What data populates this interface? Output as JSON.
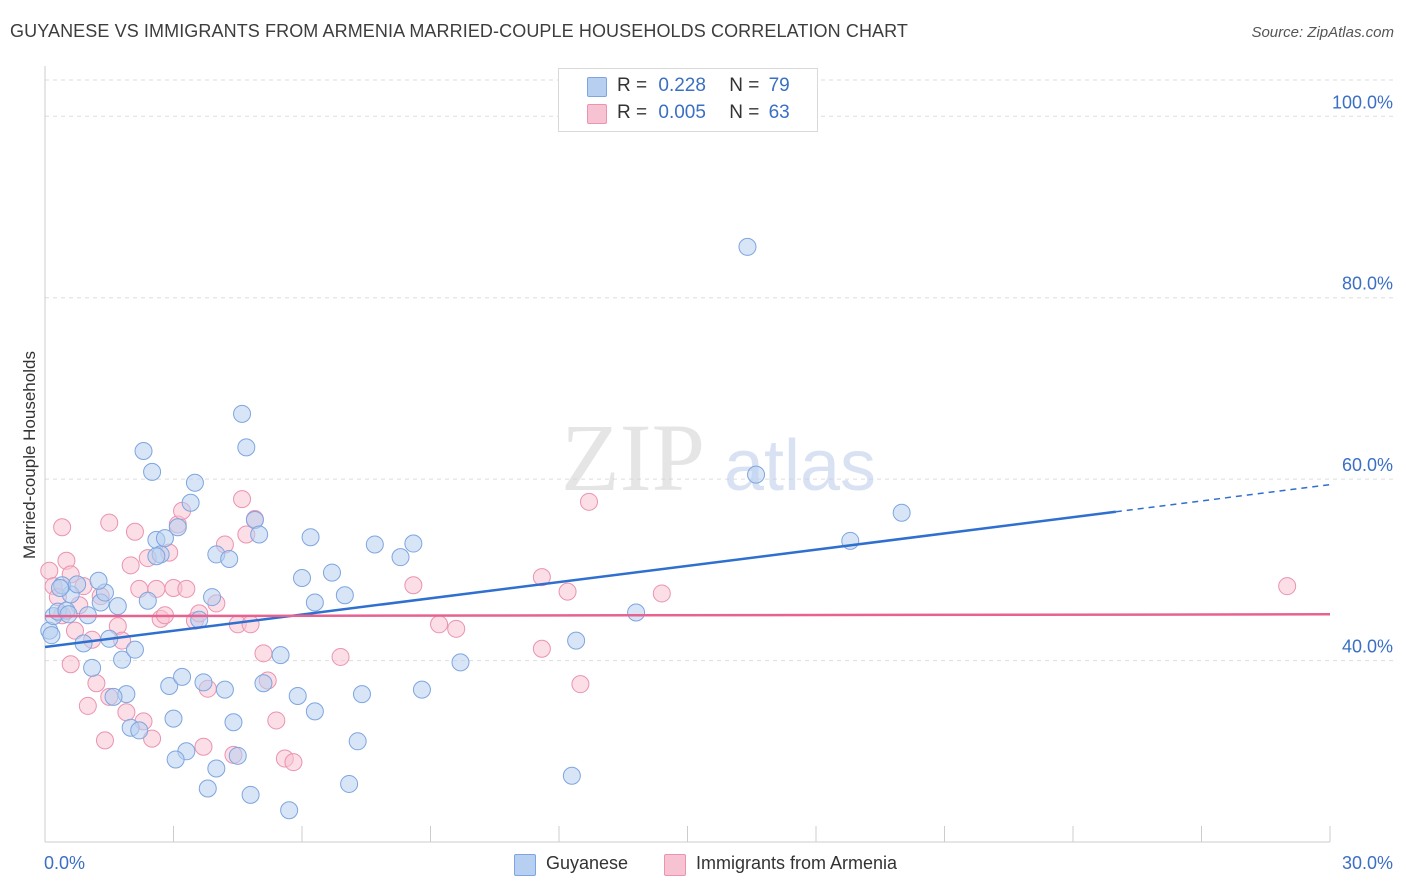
{
  "title": "GUYANESE VS IMMIGRANTS FROM ARMENIA MARRIED-COUPLE HOUSEHOLDS CORRELATION CHART",
  "source": "Source: ZipAtlas.com",
  "watermark": {
    "zip": "ZIP",
    "atlas": "atlas"
  },
  "legend": {
    "rows": [
      {
        "r_label": "R =",
        "r_value": "0.228",
        "n_label": "N =",
        "n_value": "79"
      },
      {
        "r_label": "R =",
        "r_value": "0.005",
        "n_label": "N =",
        "n_value": "63"
      }
    ]
  },
  "bottom_legend": {
    "series1": "Guyanese",
    "series2": "Immigrants from Armenia"
  },
  "colors": {
    "series1_fill": "#b7cff1",
    "series1_stroke": "#7ea5e0",
    "series1_line": "#2f6fcf",
    "series2_fill": "#f7c3d2",
    "series2_stroke": "#eb93b0",
    "series2_line": "#e8628f",
    "tick_label": "#3a6fc4",
    "grid": "#dddddd"
  },
  "chart_data": {
    "type": "scatter",
    "title": "GUYANESE VS IMMIGRANTS FROM ARMENIA MARRIED-COUPLE HOUSEHOLDS CORRELATION CHART",
    "xlabel": "",
    "ylabel": "Married-couple Households",
    "xlim": [
      0,
      30
    ],
    "ylim": [
      20,
      104
    ],
    "x_tick_labels": [
      "0.0%",
      "30.0%"
    ],
    "y_ticks": [
      40,
      60,
      80,
      100
    ],
    "y_tick_labels": [
      "40.0%",
      "60.0%",
      "80.0%",
      "100.0%"
    ],
    "grid": true,
    "legend_position": "top-center",
    "series": [
      {
        "name": "Guyanese",
        "R": 0.228,
        "N": 79,
        "trend": {
          "x0": 0,
          "y0": 41.5,
          "x1": 25,
          "y1": 56.4,
          "dash_to_x": 30,
          "dash_to_y": 59.4
        },
        "points": [
          [
            0.1,
            43.3
          ],
          [
            0.2,
            44.9
          ],
          [
            0.3,
            45.4
          ],
          [
            0.5,
            45.5
          ],
          [
            0.6,
            47.3
          ],
          [
            0.9,
            41.9
          ],
          [
            0.4,
            48.3
          ],
          [
            1.0,
            45.0
          ],
          [
            1.1,
            39.2
          ],
          [
            1.3,
            46.4
          ],
          [
            1.5,
            42.4
          ],
          [
            1.4,
            47.5
          ],
          [
            1.7,
            46.0
          ],
          [
            1.8,
            40.1
          ],
          [
            1.9,
            36.3
          ],
          [
            2.0,
            32.6
          ],
          [
            2.1,
            41.2
          ],
          [
            2.2,
            32.3
          ],
          [
            2.4,
            46.6
          ],
          [
            2.3,
            63.1
          ],
          [
            2.5,
            60.8
          ],
          [
            2.6,
            53.3
          ],
          [
            2.7,
            51.7
          ],
          [
            2.8,
            53.5
          ],
          [
            2.6,
            51.5
          ],
          [
            2.9,
            37.2
          ],
          [
            3.0,
            33.6
          ],
          [
            3.1,
            54.7
          ],
          [
            3.2,
            38.2
          ],
          [
            3.3,
            30.0
          ],
          [
            3.4,
            57.4
          ],
          [
            3.5,
            59.6
          ],
          [
            3.6,
            44.5
          ],
          [
            3.7,
            37.6
          ],
          [
            3.8,
            25.9
          ],
          [
            3.9,
            47.0
          ],
          [
            4.0,
            51.7
          ],
          [
            4.2,
            36.8
          ],
          [
            4.0,
            28.1
          ],
          [
            4.4,
            33.2
          ],
          [
            4.3,
            51.2
          ],
          [
            4.5,
            29.5
          ],
          [
            4.6,
            67.2
          ],
          [
            4.7,
            63.5
          ],
          [
            4.8,
            25.2
          ],
          [
            4.9,
            55.5
          ],
          [
            5.0,
            53.9
          ],
          [
            5.1,
            37.5
          ],
          [
            5.5,
            40.6
          ],
          [
            5.7,
            23.5
          ],
          [
            5.9,
            36.1
          ],
          [
            6.0,
            49.1
          ],
          [
            6.2,
            53.6
          ],
          [
            6.3,
            34.4
          ],
          [
            6.3,
            46.4
          ],
          [
            6.7,
            49.7
          ],
          [
            7.0,
            47.2
          ],
          [
            7.1,
            26.4
          ],
          [
            7.3,
            31.1
          ],
          [
            7.4,
            36.3
          ],
          [
            7.7,
            52.8
          ],
          [
            8.3,
            51.4
          ],
          [
            8.6,
            52.9
          ],
          [
            8.8,
            36.8
          ],
          [
            9.7,
            39.8
          ],
          [
            12.3,
            27.3
          ],
          [
            12.4,
            42.2
          ],
          [
            13.8,
            45.3
          ],
          [
            16.4,
            85.6
          ],
          [
            16.6,
            60.5
          ],
          [
            18.8,
            53.2
          ],
          [
            20.0,
            56.3
          ],
          [
            0.15,
            42.8
          ],
          [
            0.35,
            48.0
          ],
          [
            0.55,
            45.1
          ],
          [
            0.75,
            48.4
          ],
          [
            1.25,
            48.8
          ],
          [
            1.6,
            36.0
          ],
          [
            3.05,
            29.1
          ]
        ]
      },
      {
        "name": "Immigrants from Armenia",
        "R": 0.005,
        "N": 63,
        "trend": {
          "x0": 0,
          "y0": 44.9,
          "x1": 30,
          "y1": 45.1
        },
        "points": [
          [
            0.1,
            49.9
          ],
          [
            0.2,
            48.2
          ],
          [
            0.3,
            47.0
          ],
          [
            0.4,
            45.0
          ],
          [
            0.5,
            51.0
          ],
          [
            0.4,
            54.7
          ],
          [
            0.6,
            39.6
          ],
          [
            0.6,
            49.5
          ],
          [
            0.7,
            43.3
          ],
          [
            0.8,
            46.1
          ],
          [
            0.9,
            48.2
          ],
          [
            1.0,
            35.0
          ],
          [
            1.1,
            42.3
          ],
          [
            1.2,
            37.5
          ],
          [
            1.3,
            47.1
          ],
          [
            1.4,
            31.2
          ],
          [
            1.5,
            55.2
          ],
          [
            1.5,
            36.0
          ],
          [
            1.7,
            43.8
          ],
          [
            1.8,
            42.2
          ],
          [
            1.9,
            34.3
          ],
          [
            2.0,
            50.5
          ],
          [
            2.2,
            47.9
          ],
          [
            2.1,
            54.2
          ],
          [
            2.3,
            33.3
          ],
          [
            2.4,
            51.3
          ],
          [
            2.5,
            31.4
          ],
          [
            2.6,
            47.9
          ],
          [
            2.7,
            44.6
          ],
          [
            2.8,
            45.0
          ],
          [
            2.9,
            51.9
          ],
          [
            3.0,
            48.0
          ],
          [
            3.1,
            55.0
          ],
          [
            3.2,
            56.5
          ],
          [
            3.3,
            47.9
          ],
          [
            3.5,
            44.4
          ],
          [
            3.6,
            45.2
          ],
          [
            3.7,
            30.5
          ],
          [
            3.8,
            36.9
          ],
          [
            4.0,
            46.3
          ],
          [
            4.2,
            52.8
          ],
          [
            4.4,
            29.6
          ],
          [
            4.5,
            44.0
          ],
          [
            4.6,
            57.8
          ],
          [
            4.7,
            53.9
          ],
          [
            4.8,
            44.0
          ],
          [
            4.9,
            55.6
          ],
          [
            5.1,
            40.8
          ],
          [
            5.4,
            33.4
          ],
          [
            5.6,
            29.2
          ],
          [
            5.8,
            28.8
          ],
          [
            5.2,
            37.8
          ],
          [
            6.9,
            40.4
          ],
          [
            8.6,
            48.3
          ],
          [
            9.2,
            44.0
          ],
          [
            9.6,
            43.5
          ],
          [
            11.6,
            41.3
          ],
          [
            11.6,
            49.2
          ],
          [
            12.2,
            47.6
          ],
          [
            12.5,
            37.4
          ],
          [
            12.7,
            57.5
          ],
          [
            14.4,
            47.4
          ],
          [
            29.0,
            48.2
          ]
        ]
      }
    ]
  }
}
